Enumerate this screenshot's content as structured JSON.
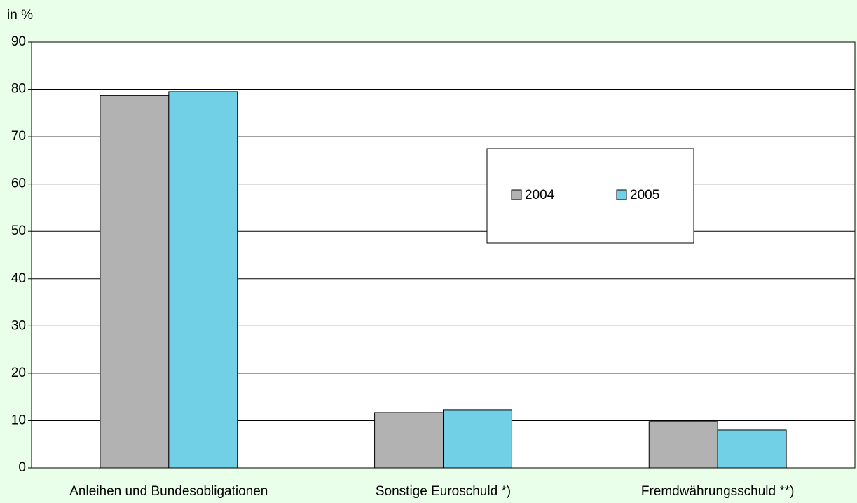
{
  "chart_data": {
    "type": "bar",
    "y_axis_label": "in %",
    "categories": [
      "Anleihen und Bundesobligationen",
      "Sonstige Euroschuld *)",
      "Fremdwährungsschuld **)"
    ],
    "series": [
      {
        "name": "2004",
        "color": "#b2b2b2",
        "values": [
          78.7,
          11.7,
          9.8
        ]
      },
      {
        "name": "2005",
        "color": "#72d0e6",
        "values": [
          79.5,
          12.3,
          8.0
        ]
      }
    ],
    "ylim": [
      0,
      90
    ],
    "yticks": [
      0,
      10,
      20,
      30,
      40,
      50,
      60,
      70,
      80,
      90
    ],
    "grid": true,
    "legend_position": "right"
  }
}
